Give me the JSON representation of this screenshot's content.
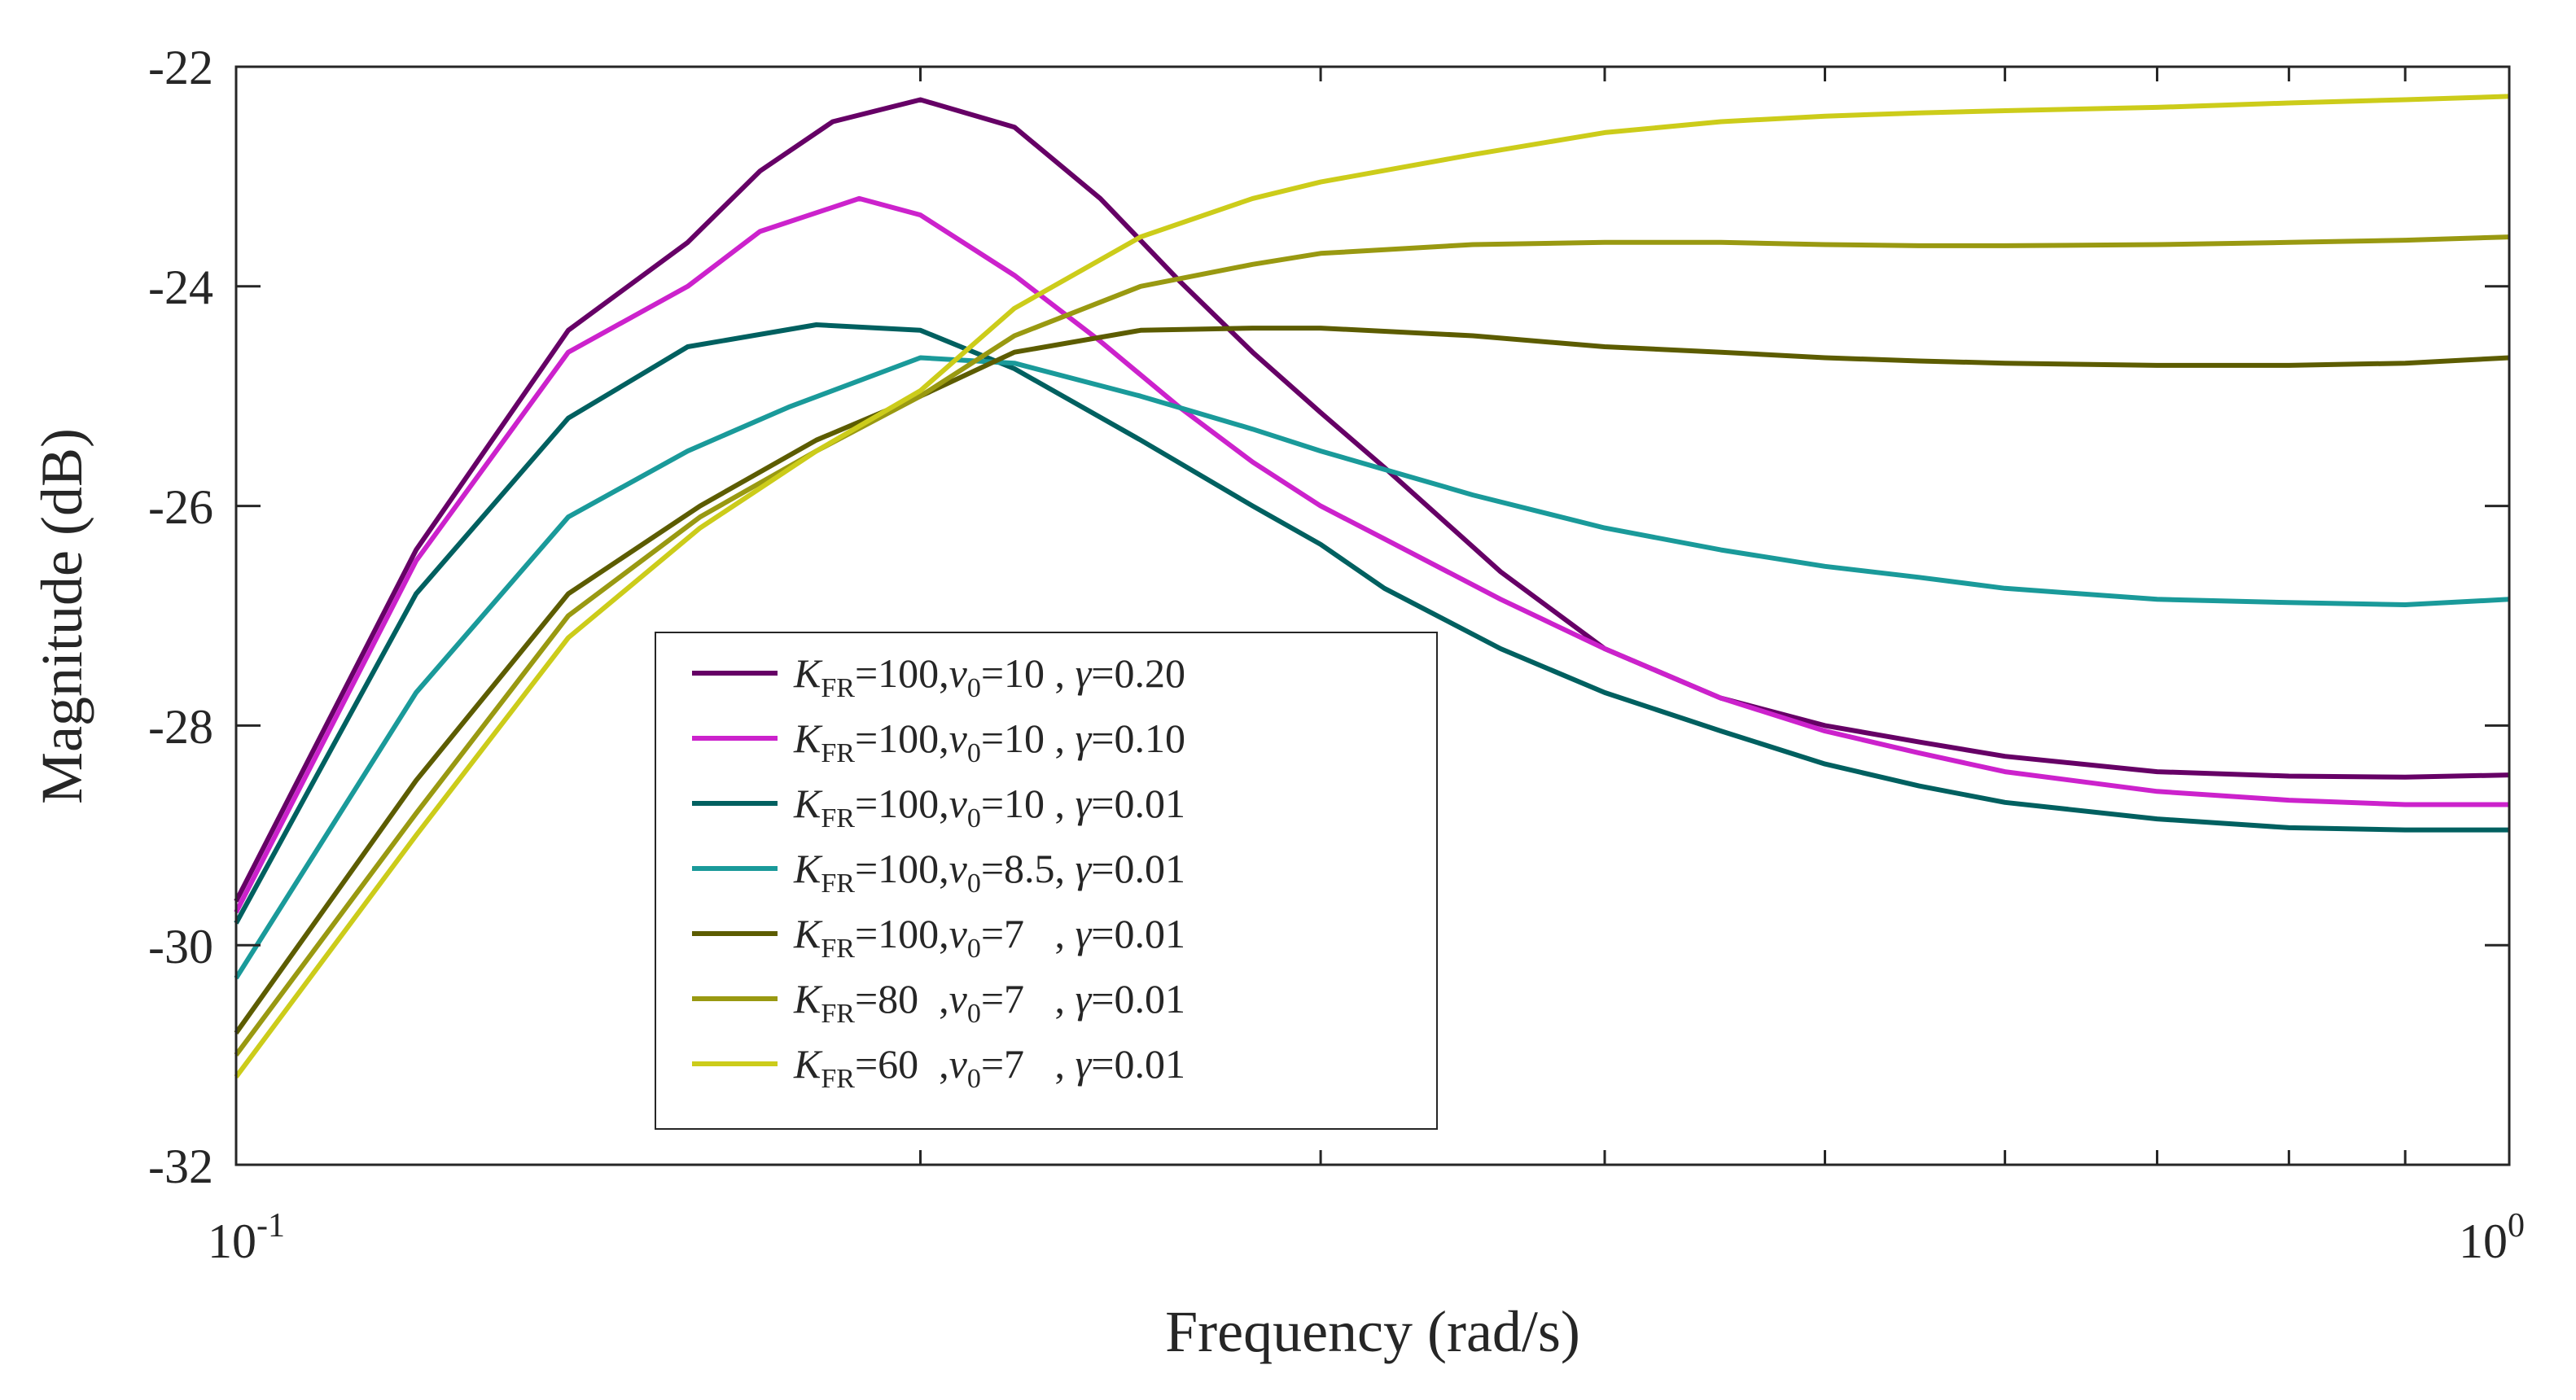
{
  "chart_data": {
    "type": "line",
    "title": "",
    "xlabel": "Frequency (rad/s)",
    "ylabel": "Magnitude (dB)",
    "xscale": "log",
    "xlim": [
      0.1,
      1.0
    ],
    "ylim": [
      -32,
      -22
    ],
    "x_tick_labels": [
      {
        "base": "10",
        "exp": "-1"
      },
      {
        "base": "10",
        "exp": "0"
      }
    ],
    "yticks": [
      -32,
      -30,
      -28,
      -26,
      -24,
      -22
    ],
    "y_tick_labels": [
      "-32",
      "-30",
      "-28",
      "-26",
      "-24",
      "-22"
    ],
    "grid": false,
    "legend_position": "lower-center",
    "series": [
      {
        "name": "K_FR=100,v0=10 , γ=0.20",
        "legend": {
          "k_base": "K",
          "k_sub": "FR",
          "k_val": "=100,",
          "v_base": "v",
          "v_sub": "0",
          "v_val": "=10 , ",
          "g_sym": "γ",
          "g_val": "=0.20"
        },
        "color": "#660066",
        "x": [
          0.1,
          0.12,
          0.14,
          0.158,
          0.17,
          0.183,
          0.2,
          0.22,
          0.24,
          0.26,
          0.28,
          0.3,
          0.32,
          0.36,
          0.4,
          0.45,
          0.5,
          0.55,
          0.6,
          0.7,
          0.8,
          0.9,
          1.0
        ],
        "y": [
          -29.6,
          -26.4,
          -24.4,
          -23.6,
          -22.95,
          -22.5,
          -22.3,
          -22.55,
          -23.2,
          -23.95,
          -24.6,
          -25.15,
          -25.65,
          -26.6,
          -27.3,
          -27.75,
          -28.0,
          -28.15,
          -28.28,
          -28.42,
          -28.46,
          -28.47,
          -28.45
        ]
      },
      {
        "name": "K_FR=100,v0=10 , γ=0.10",
        "legend": {
          "k_base": "K",
          "k_sub": "FR",
          "k_val": "=100,",
          "v_base": "v",
          "v_sub": "0",
          "v_val": "=10 , ",
          "g_sym": "γ",
          "g_val": "=0.10"
        },
        "color": "#cc22cc",
        "x": [
          0.1,
          0.12,
          0.14,
          0.158,
          0.17,
          0.188,
          0.2,
          0.22,
          0.24,
          0.26,
          0.28,
          0.3,
          0.32,
          0.36,
          0.4,
          0.45,
          0.5,
          0.55,
          0.6,
          0.7,
          0.8,
          0.9,
          1.0
        ],
        "y": [
          -29.7,
          -26.5,
          -24.6,
          -24.0,
          -23.5,
          -23.2,
          -23.35,
          -23.9,
          -24.5,
          -25.1,
          -25.6,
          -26.0,
          -26.3,
          -26.85,
          -27.3,
          -27.75,
          -28.05,
          -28.25,
          -28.42,
          -28.6,
          -28.68,
          -28.72,
          -28.72
        ]
      },
      {
        "name": "K_FR=100,v0=10 , γ=0.01",
        "legend": {
          "k_base": "K",
          "k_sub": "FR",
          "k_val": "=100,",
          "v_base": "v",
          "v_sub": "0",
          "v_val": "=10 , ",
          "g_sym": "γ",
          "g_val": "=0.01"
        },
        "color": "#006060",
        "x": [
          0.1,
          0.12,
          0.14,
          0.158,
          0.18,
          0.2,
          0.22,
          0.25,
          0.28,
          0.3,
          0.32,
          0.36,
          0.4,
          0.45,
          0.5,
          0.55,
          0.6,
          0.7,
          0.8,
          0.9,
          1.0
        ],
        "y": [
          -29.8,
          -26.8,
          -25.2,
          -24.55,
          -24.35,
          -24.4,
          -24.75,
          -25.4,
          -26.0,
          -26.35,
          -26.75,
          -27.3,
          -27.7,
          -28.05,
          -28.35,
          -28.55,
          -28.7,
          -28.85,
          -28.93,
          -28.95,
          -28.95
        ]
      },
      {
        "name": "K_FR=100,v0=8.5, γ=0.01",
        "legend": {
          "k_base": "K",
          "k_sub": "FR",
          "k_val": "=100,",
          "v_base": "v",
          "v_sub": "0",
          "v_val": "=8.5, ",
          "g_sym": "γ",
          "g_val": "=0.01"
        },
        "color": "#1a9a9a",
        "x": [
          0.1,
          0.12,
          0.14,
          0.158,
          0.175,
          0.2,
          0.22,
          0.25,
          0.28,
          0.3,
          0.35,
          0.4,
          0.45,
          0.5,
          0.55,
          0.6,
          0.7,
          0.8,
          0.9,
          1.0
        ],
        "y": [
          -30.3,
          -27.7,
          -26.1,
          -25.5,
          -25.1,
          -24.65,
          -24.7,
          -25.0,
          -25.3,
          -25.5,
          -25.9,
          -26.2,
          -26.4,
          -26.55,
          -26.65,
          -26.75,
          -26.85,
          -26.88,
          -26.9,
          -26.85
        ]
      },
      {
        "name": "K_FR=100,v0=7 , γ=0.01",
        "legend": {
          "k_base": "K",
          "k_sub": "FR",
          "k_val": "=100,",
          "v_base": "v",
          "v_sub": "0",
          "v_val": "=7   , ",
          "g_sym": "γ",
          "g_val": "=0.01"
        },
        "color": "#5c5c00",
        "x": [
          0.1,
          0.12,
          0.14,
          0.16,
          0.18,
          0.2,
          0.22,
          0.25,
          0.28,
          0.3,
          0.35,
          0.4,
          0.45,
          0.5,
          0.55,
          0.6,
          0.7,
          0.8,
          0.9,
          1.0
        ],
        "y": [
          -30.8,
          -28.5,
          -26.8,
          -26.0,
          -25.4,
          -25.0,
          -24.6,
          -24.4,
          -24.38,
          -24.38,
          -24.45,
          -24.55,
          -24.6,
          -24.65,
          -24.68,
          -24.7,
          -24.72,
          -24.72,
          -24.7,
          -24.65
        ]
      },
      {
        "name": "K_FR=80 ,v0=7 , γ=0.01",
        "legend": {
          "k_base": "K",
          "k_sub": "FR",
          "k_val": "=80  ,",
          "v_base": "v",
          "v_sub": "0",
          "v_val": "=7   , ",
          "g_sym": "γ",
          "g_val": "=0.01"
        },
        "color": "#999911",
        "x": [
          0.1,
          0.12,
          0.14,
          0.16,
          0.18,
          0.2,
          0.22,
          0.25,
          0.28,
          0.3,
          0.35,
          0.4,
          0.45,
          0.5,
          0.55,
          0.6,
          0.7,
          0.8,
          0.9,
          1.0
        ],
        "y": [
          -31.0,
          -28.8,
          -27.0,
          -26.1,
          -25.5,
          -25.0,
          -24.45,
          -24.0,
          -23.8,
          -23.7,
          -23.62,
          -23.6,
          -23.6,
          -23.62,
          -23.63,
          -23.63,
          -23.62,
          -23.6,
          -23.58,
          -23.55
        ]
      },
      {
        "name": "K_FR=60 ,v0=7 , γ=0.01",
        "legend": {
          "k_base": "K",
          "k_sub": "FR",
          "k_val": "=60  ,",
          "v_base": "v",
          "v_sub": "0",
          "v_val": "=7   , ",
          "g_sym": "γ",
          "g_val": "=0.01"
        },
        "color": "#cccc1a",
        "x": [
          0.1,
          0.12,
          0.14,
          0.16,
          0.18,
          0.2,
          0.22,
          0.25,
          0.28,
          0.3,
          0.35,
          0.4,
          0.45,
          0.5,
          0.55,
          0.6,
          0.7,
          0.8,
          0.9,
          1.0
        ],
        "y": [
          -31.2,
          -29.0,
          -27.2,
          -26.2,
          -25.5,
          -24.95,
          -24.2,
          -23.55,
          -23.2,
          -23.05,
          -22.8,
          -22.6,
          -22.5,
          -22.45,
          -22.42,
          -22.4,
          -22.37,
          -22.33,
          -22.3,
          -22.27
        ]
      }
    ]
  }
}
